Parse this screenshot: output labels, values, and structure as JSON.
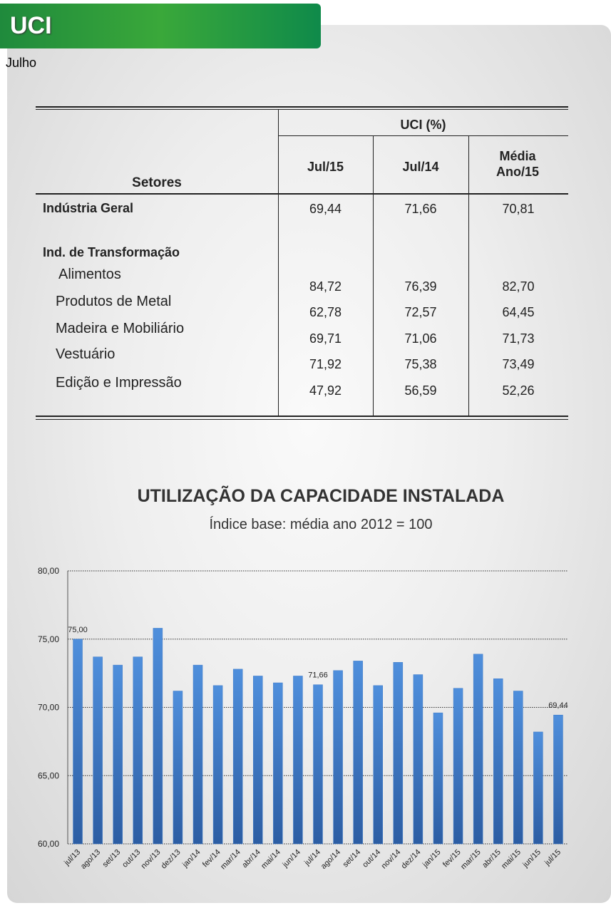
{
  "header": {
    "title": "UCI",
    "subtitle": "Julho"
  },
  "table": {
    "row_header": "Setores",
    "group_header": "UCI (%)",
    "columns": [
      "Jul/15",
      "Jul/14",
      "Média Ano/15"
    ],
    "rows": [
      [
        "Indústria Geral",
        "69,44",
        "71,66",
        "70,81"
      ],
      [
        "Ind. de Transformação"
      ],
      [
        "Alimentos",
        "84,72",
        "76,39",
        "82,70"
      ],
      [
        "Produtos de Metal",
        "62,78",
        "72,57",
        "64,45"
      ],
      [
        "Madeira e Mobiliário",
        "69,71",
        "71,06",
        "71,73"
      ],
      [
        "Vestuário",
        "71,92",
        "75,38",
        "73,49"
      ],
      [
        "Edição e Impressão",
        "47,92",
        "56,59",
        "52,26"
      ]
    ]
  },
  "chart_data": {
    "type": "bar",
    "title": "UTILIZAÇÃO DA CAPACIDADE INSTALADA",
    "subtitle": "Índice base: média ano 2012 = 100",
    "categories": [
      "jul/13",
      "ago/13",
      "set/13",
      "out/13",
      "nov/13",
      "dez/13",
      "jan/14",
      "fev/14",
      "mar/14",
      "abr/14",
      "mai/14",
      "jun/14",
      "jul/14",
      "ago/14",
      "set/14",
      "out/14",
      "nov/14",
      "dez/14",
      "jan/15",
      "fev/15",
      "mar/15",
      "abr/15",
      "mai/15",
      "jun/15",
      "jul/15"
    ],
    "values": [
      75.0,
      73.7,
      73.1,
      73.7,
      75.8,
      71.2,
      73.1,
      71.6,
      72.8,
      72.3,
      71.8,
      72.3,
      71.66,
      72.7,
      73.4,
      71.6,
      73.3,
      72.4,
      69.6,
      71.4,
      73.9,
      72.1,
      71.2,
      68.2,
      69.44
    ],
    "value_labels": [
      "75,00",
      null,
      null,
      null,
      null,
      null,
      null,
      null,
      null,
      null,
      null,
      null,
      "71,66",
      null,
      null,
      null,
      null,
      null,
      null,
      null,
      null,
      null,
      null,
      null,
      "69,44"
    ],
    "color": "#3f7cc9",
    "ylim": [
      60,
      80
    ],
    "yticks": [
      {
        "value": 60,
        "label": "60,00"
      },
      {
        "value": 65,
        "label": "65,00"
      },
      {
        "value": 70,
        "label": "70,00"
      },
      {
        "value": 75,
        "label": "75,00"
      },
      {
        "value": 80,
        "label": "80,00"
      }
    ],
    "grid": true
  }
}
